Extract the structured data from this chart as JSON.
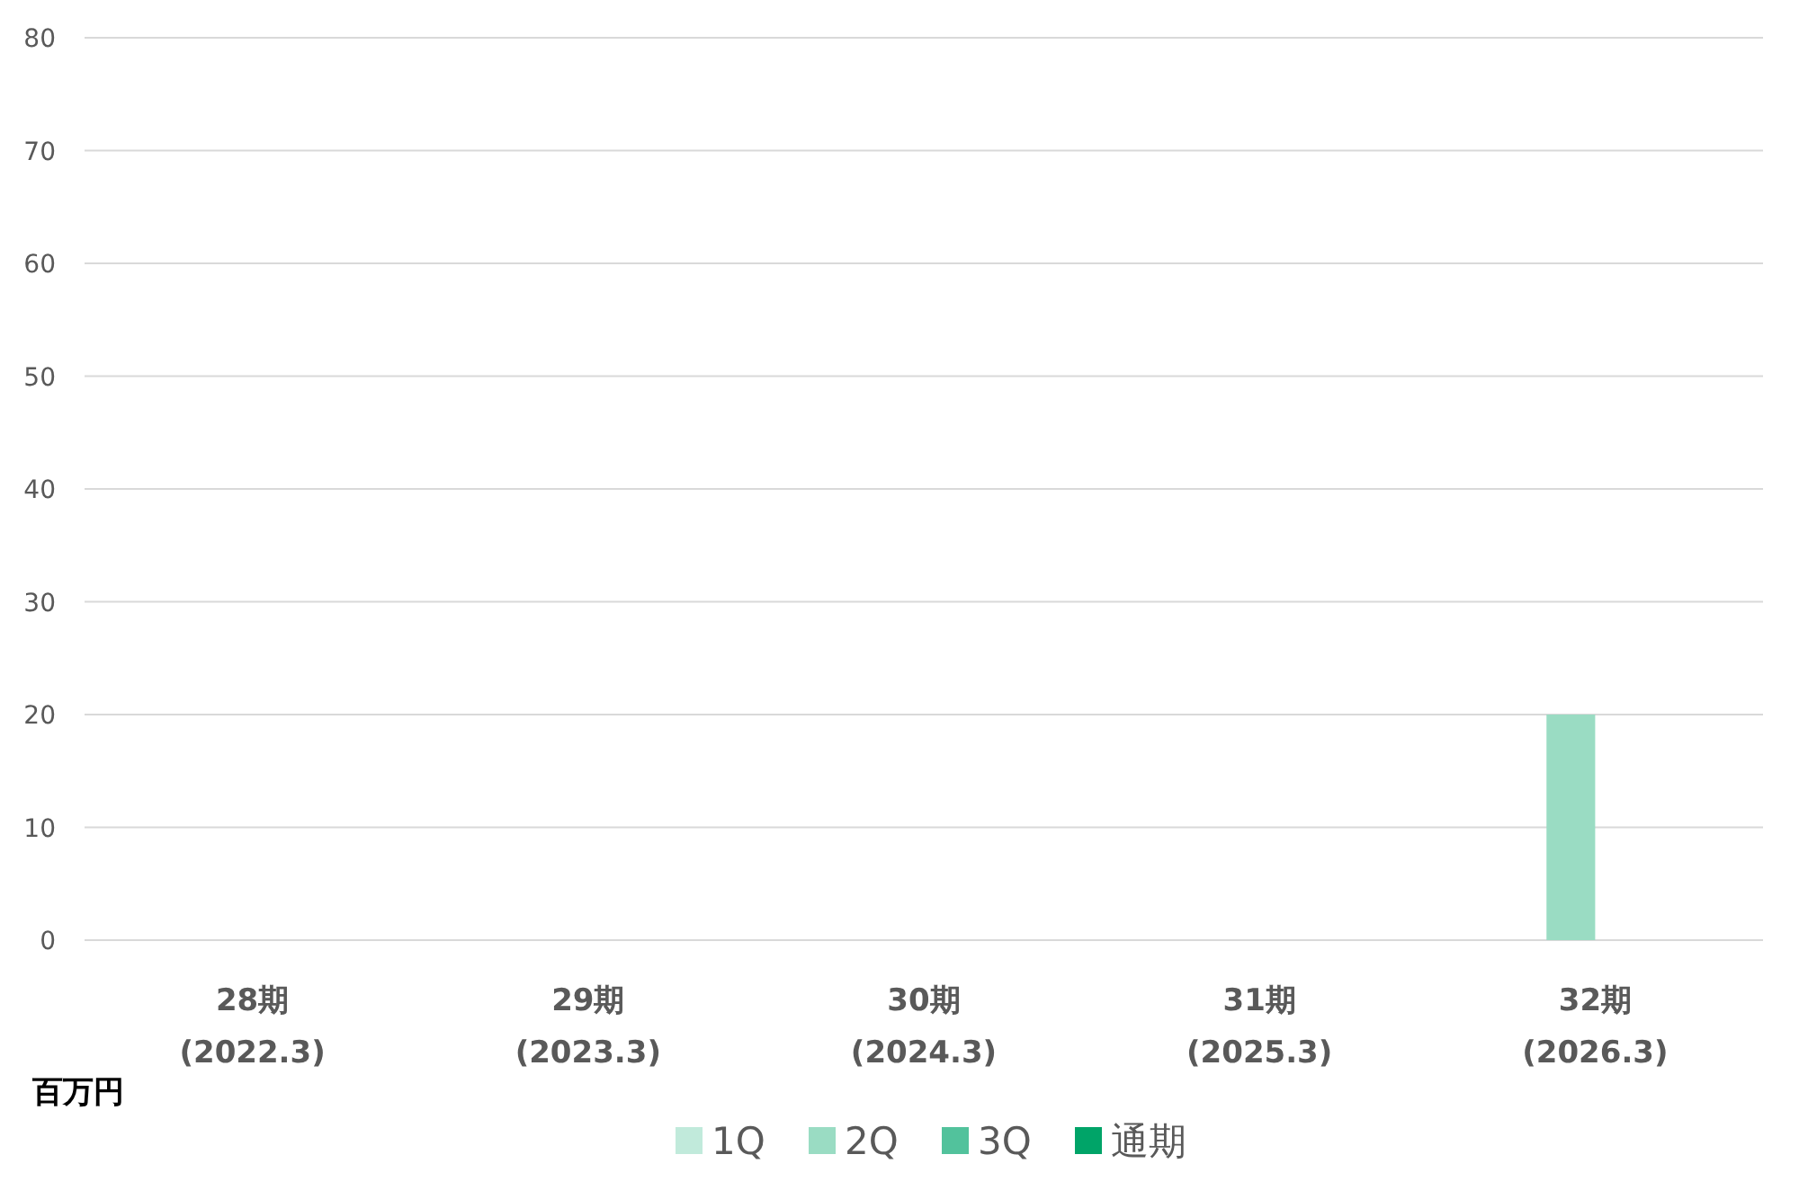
{
  "chart_data": {
    "type": "bar",
    "ylabel": "百万円",
    "categories": [
      "28期\n(2022.3)",
      "29期\n(2023.3)",
      "30期\n(2024.3)",
      "31期\n(2025.3)",
      "32期\n(2026.3)"
    ],
    "series": [
      {
        "name": "1Q",
        "color": "#c1eadb",
        "values": [
          null,
          null,
          null,
          null,
          null
        ]
      },
      {
        "name": "2Q",
        "color": "#9adcc3",
        "values": [
          null,
          null,
          null,
          null,
          20
        ]
      },
      {
        "name": "3Q",
        "color": "#52c29c",
        "values": [
          null,
          null,
          null,
          null,
          null
        ]
      },
      {
        "name": "通期",
        "color": "#00a468",
        "values": [
          null,
          null,
          null,
          null,
          null
        ]
      }
    ],
    "ylim": [
      0,
      80
    ],
    "yticks": [
      0,
      10,
      20,
      30,
      40,
      50,
      60,
      70,
      80
    ],
    "grid": "y",
    "legend": "bottom"
  }
}
